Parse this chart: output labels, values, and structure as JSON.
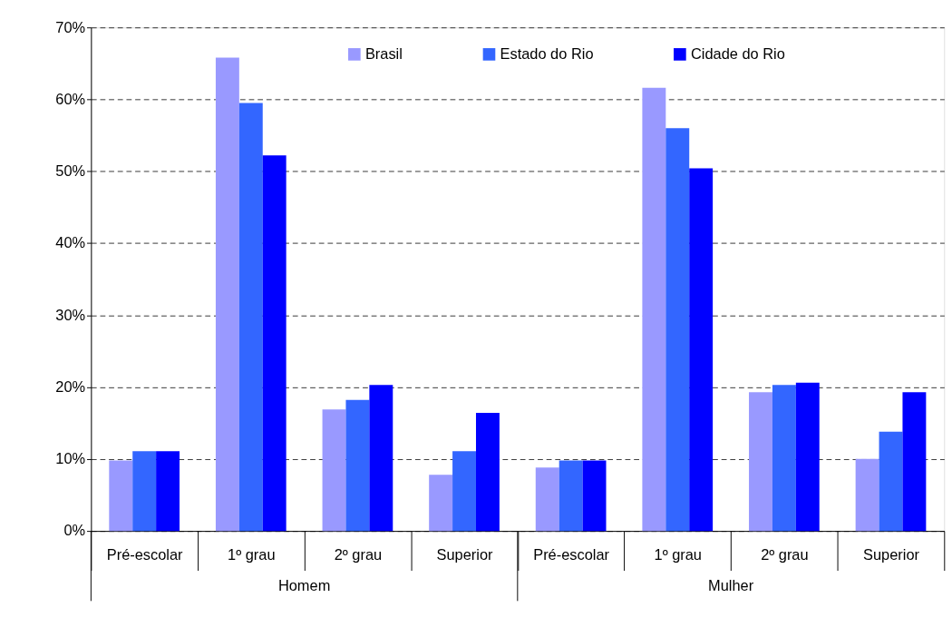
{
  "chart_data": {
    "type": "bar",
    "categories": [
      "Pré-escolar",
      "1º grau",
      "2º grau",
      "Superior",
      "Pré-escolar",
      "1º grau",
      "2º grau",
      "Superior"
    ],
    "series": [
      {
        "name": "Brasil",
        "color": "#9999ff",
        "values": [
          9.8,
          65.8,
          16.9,
          7.8,
          8.8,
          61.6,
          19.3,
          10.0
        ]
      },
      {
        "name": "Estado do Rio",
        "color": "#3366ff",
        "values": [
          11.1,
          59.5,
          18.2,
          11.1,
          9.8,
          56.0,
          20.3,
          13.8
        ]
      },
      {
        "name": "Cidade do Rio",
        "color": "#0000ff",
        "values": [
          11.1,
          52.2,
          20.3,
          16.4,
          9.8,
          50.4,
          20.6,
          19.3
        ]
      }
    ],
    "annotations": [
      "Homem",
      "Mulher"
    ],
    "ylim": [
      0,
      70
    ],
    "yticks": [
      {
        "value": 0,
        "label": "0%"
      },
      {
        "value": 10,
        "label": "10%"
      },
      {
        "value": 20,
        "label": "20%"
      },
      {
        "value": 30,
        "label": "30%"
      },
      {
        "value": 40,
        "label": "40%"
      },
      {
        "value": 50,
        "label": "50%"
      },
      {
        "value": 60,
        "label": "60%"
      },
      {
        "value": 70,
        "label": "70%"
      }
    ],
    "grid": "y",
    "legend": "top"
  }
}
